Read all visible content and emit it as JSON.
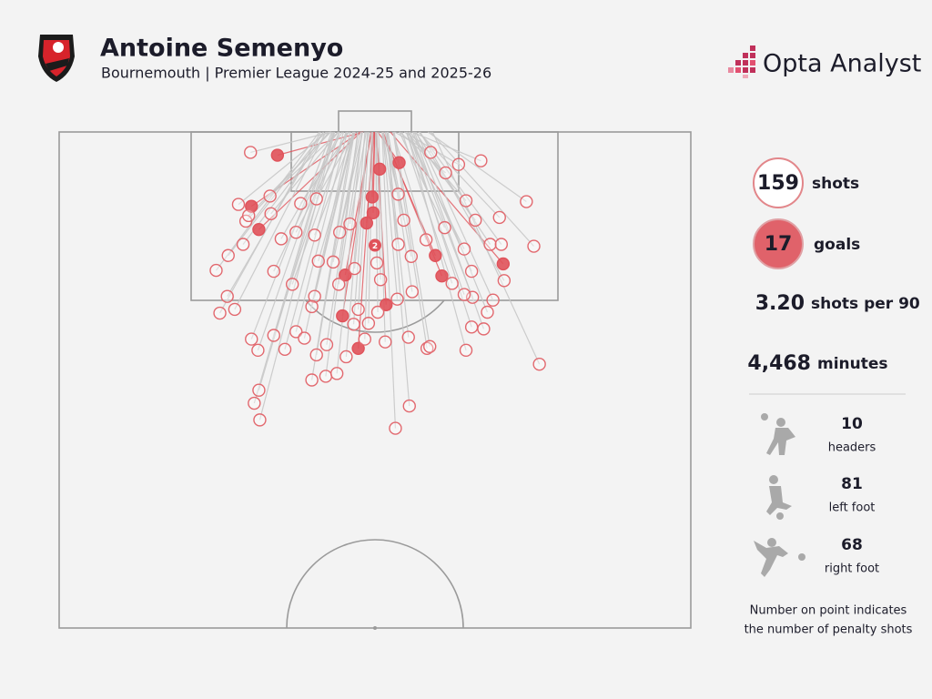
{
  "chart_data": {
    "type": "shotmap",
    "title": "Antoine Semenyo",
    "subtitle": "Bournemouth | Premier League 2024-25 and 2025-26",
    "brand": "Opta Analyst",
    "xlim": [
      -34,
      34
    ],
    "ylim": [
      0,
      53.4
    ],
    "x": [
      -10.5,
      0.5,
      2.6,
      -0.3,
      -13.3,
      -0.2,
      -0.9,
      -12.5,
      6.5,
      13.8,
      -3.2,
      7.2,
      1.2,
      -3.5,
      -1.8,
      -13.4,
      -17.1,
      -15.9,
      -16.7,
      -14.7,
      -13.9,
      -14.2,
      -11.3,
      -11.2,
      -10.1,
      -10.9,
      -8.9,
      -8.5,
      -8.0,
      -6.3,
      -6.5,
      -6.1,
      -6.5,
      -6.8,
      -10.9,
      -13.3,
      -12.6,
      -12.5,
      -13.0,
      -12.4,
      -9.7,
      -8.5,
      -7.6,
      -6.3,
      -6.8,
      -5.3,
      -4.1,
      -5.2,
      -3.1,
      -1.1,
      -0.7,
      -2.3,
      -1.8,
      0.3,
      2.4,
      0.6,
      0.2,
      -2.2,
      -3.9,
      -4.5,
      -3.8,
      -2.7,
      2.5,
      3.1,
      2.5,
      6.0,
      7.6,
      9.0,
      11.4,
      9.8,
      10.8,
      13.4,
      16.3,
      17.1,
      12.4,
      13.6,
      13.9,
      12.7,
      12.1,
      10.5,
      9.6,
      8.3,
      10.4,
      9.6,
      7.5,
      5.5,
      3.9,
      4.0,
      3.6,
      5.6,
      5.9,
      9.8,
      10.4,
      11.7,
      3.7,
      2.2,
      1.1,
      17.7,
      -13.6,
      -15.8,
      -15.1
    ],
    "y": [
      2.5,
      4.0,
      3.3,
      7.0,
      8.0,
      8.7,
      9.8,
      10.5,
      13.3,
      14.2,
      15.4,
      15.5,
      18.6,
      19.8,
      23.3,
      2.2,
      14.9,
      17.7,
      19.5,
      7.8,
      9.6,
      12.1,
      6.9,
      8.8,
      11.5,
      15.0,
      16.4,
      10.8,
      7.7,
      7.2,
      11.1,
      13.9,
      17.7,
      18.8,
      21.9,
      22.3,
      23.5,
      27.8,
      29.2,
      31.0,
      23.4,
      21.5,
      22.2,
      24.0,
      26.7,
      26.3,
      26.0,
      22.9,
      24.2,
      22.3,
      20.6,
      20.7,
      19.1,
      19.4,
      18.0,
      15.9,
      14.1,
      14.7,
      16.4,
      14.0,
      10.8,
      9.9,
      12.1,
      9.5,
      6.7,
      2.2,
      4.4,
      3.5,
      3.1,
      7.4,
      9.5,
      9.2,
      7.5,
      12.3,
      12.1,
      12.1,
      16.0,
      18.1,
      19.4,
      17.8,
      17.5,
      16.3,
      15.0,
      12.6,
      10.3,
      11.6,
      13.4,
      17.2,
      22.1,
      23.3,
      23.1,
      23.5,
      21.0,
      21.2,
      29.5,
      31.9,
      22.6,
      25.0,
      9.0,
      13.3,
      19.1
    ],
    "goal": [
      true,
      true,
      true,
      true,
      true,
      true,
      true,
      true,
      true,
      true,
      true,
      true,
      true,
      true,
      true,
      false,
      false,
      false,
      false,
      false,
      false,
      false,
      false,
      false,
      false,
      false,
      false,
      false,
      false,
      false,
      false,
      false,
      false,
      false,
      false,
      false,
      false,
      false,
      false,
      false,
      false,
      false,
      false,
      false,
      false,
      false,
      false,
      false,
      false,
      false,
      false,
      false,
      false,
      false,
      false,
      false,
      false,
      false,
      false,
      false,
      false,
      false,
      false,
      false,
      false,
      false,
      false,
      false,
      false,
      false,
      false,
      false,
      false,
      false,
      false,
      false,
      false,
      false,
      false,
      false,
      false,
      false,
      false,
      false,
      false,
      false,
      false,
      false,
      false,
      false,
      false,
      false,
      false,
      false,
      false,
      false,
      false,
      false,
      false,
      false,
      false
    ],
    "goal_color": "#e0525a",
    "miss_color": "#e2686e",
    "penalty": {
      "x": 0,
      "y": 12.2,
      "count": 2
    },
    "summary": [
      {
        "number": 159,
        "text": "shots"
      },
      {
        "number": 17,
        "text": "goals"
      },
      {
        "number": {
          "value": 3.2,
          "label": "3.20"
        },
        "text": "shots per 90"
      },
      {
        "number": {
          "value": 4468,
          "label": "4,468"
        },
        "text": "minutes"
      }
    ],
    "body_parts": [
      {
        "count": 10,
        "text": "headers"
      },
      {
        "count": 81,
        "text": "left foot"
      },
      {
        "count": 68,
        "text": "right foot"
      }
    ],
    "note": [
      "Number on point indicates",
      "the number of penalty shots"
    ]
  }
}
